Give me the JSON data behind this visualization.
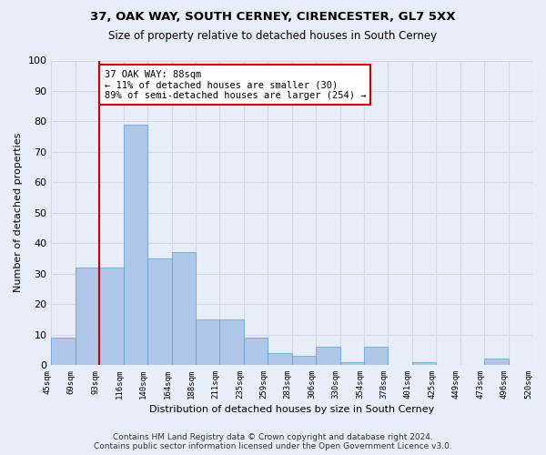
{
  "title1": "37, OAK WAY, SOUTH CERNEY, CIRENCESTER, GL7 5XX",
  "title2": "Size of property relative to detached houses in South Cerney",
  "xlabel": "Distribution of detached houses by size in South Cerney",
  "ylabel": "Number of detached properties",
  "bar_values": [
    9,
    32,
    32,
    79,
    35,
    37,
    15,
    15,
    9,
    4,
    3,
    6,
    1,
    6,
    0,
    1,
    0,
    0,
    2,
    0
  ],
  "categories": [
    "45sqm",
    "69sqm",
    "93sqm",
    "116sqm",
    "140sqm",
    "164sqm",
    "188sqm",
    "211sqm",
    "235sqm",
    "259sqm",
    "283sqm",
    "306sqm",
    "330sqm",
    "354sqm",
    "378sqm",
    "401sqm",
    "425sqm",
    "449sqm",
    "473sqm",
    "496sqm",
    "520sqm"
  ],
  "bar_color": "#aec6e8",
  "bar_edge_color": "#5a9fd4",
  "vline_color": "#cc0000",
  "annotation_text": "37 OAK WAY: 88sqm\n← 11% of detached houses are smaller (30)\n89% of semi-detached houses are larger (254) →",
  "annotation_box_color": "#ffffff",
  "annotation_box_edge": "#cc0000",
  "ylim": [
    0,
    100
  ],
  "yticks": [
    0,
    10,
    20,
    30,
    40,
    50,
    60,
    70,
    80,
    90,
    100
  ],
  "grid_color": "#d0d8e8",
  "bg_color": "#e8eef8",
  "footer": "Contains HM Land Registry data © Crown copyright and database right 2024.\nContains public sector information licensed under the Open Government Licence v3.0."
}
